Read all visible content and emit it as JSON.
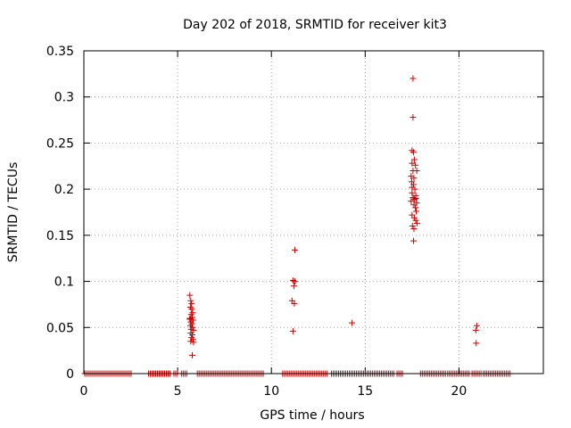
{
  "chart_data": {
    "type": "scatter",
    "title": "Day 202 of 2018, SRMTID for receiver kit3",
    "xlabel": "GPS time / hours",
    "ylabel": "SRMTID / TECUs",
    "xlim": [
      0,
      24.5
    ],
    "ylim": [
      0,
      0.35
    ],
    "xticks": [
      0,
      5,
      10,
      15,
      20
    ],
    "xtick_labels": [
      "0",
      "5",
      "10",
      "15",
      "20"
    ],
    "yticks": [
      0,
      0.05,
      0.1,
      0.15,
      0.2,
      0.25,
      0.3,
      0.35
    ],
    "ytick_labels": [
      "0",
      "0.05",
      "0.1",
      "0.15",
      "0.2",
      "0.25",
      "0.3",
      "0.35"
    ],
    "grid": true,
    "marker_color": "#cc0000",
    "series": [
      {
        "name": "SRMTID",
        "points": [
          [
            5.65,
            0.085
          ],
          [
            5.7,
            0.079
          ],
          [
            5.68,
            0.072
          ],
          [
            5.75,
            0.07
          ],
          [
            5.72,
            0.064
          ],
          [
            5.78,
            0.061
          ],
          [
            5.65,
            0.059
          ],
          [
            5.82,
            0.058
          ],
          [
            5.7,
            0.056
          ],
          [
            5.76,
            0.054
          ],
          [
            5.68,
            0.052
          ],
          [
            5.8,
            0.05
          ],
          [
            5.72,
            0.048
          ],
          [
            5.85,
            0.047
          ],
          [
            5.7,
            0.044
          ],
          [
            5.78,
            0.042
          ],
          [
            5.74,
            0.039
          ],
          [
            5.82,
            0.037
          ],
          [
            5.7,
            0.035
          ],
          [
            5.85,
            0.034
          ],
          [
            5.78,
            0.02
          ],
          [
            5.66,
            0.06
          ],
          [
            5.8,
            0.066
          ],
          [
            5.74,
            0.076
          ],
          [
            11.15,
            0.101
          ],
          [
            11.25,
            0.1
          ],
          [
            11.2,
            0.095
          ],
          [
            11.1,
            0.079
          ],
          [
            11.22,
            0.076
          ],
          [
            11.15,
            0.046
          ],
          [
            11.25,
            0.134
          ],
          [
            14.3,
            0.055
          ],
          [
            17.55,
            0.32
          ],
          [
            17.55,
            0.278
          ],
          [
            17.5,
            0.242
          ],
          [
            17.58,
            0.24
          ],
          [
            17.62,
            0.232
          ],
          [
            17.5,
            0.228
          ],
          [
            17.68,
            0.226
          ],
          [
            17.55,
            0.22
          ],
          [
            17.75,
            0.22
          ],
          [
            17.45,
            0.214
          ],
          [
            17.6,
            0.212
          ],
          [
            17.48,
            0.208
          ],
          [
            17.58,
            0.205
          ],
          [
            17.65,
            0.2
          ],
          [
            17.5,
            0.196
          ],
          [
            17.7,
            0.193
          ],
          [
            17.55,
            0.191
          ],
          [
            17.62,
            0.189
          ],
          [
            17.45,
            0.187
          ],
          [
            17.75,
            0.185
          ],
          [
            17.6,
            0.183
          ],
          [
            17.68,
            0.18
          ],
          [
            17.72,
            0.176
          ],
          [
            17.5,
            0.172
          ],
          [
            17.62,
            0.169
          ],
          [
            17.7,
            0.166
          ],
          [
            17.76,
            0.163
          ],
          [
            17.52,
            0.16
          ],
          [
            17.6,
            0.157
          ],
          [
            17.58,
            0.144
          ],
          [
            17.7,
            0.19
          ],
          [
            17.5,
            0.202
          ],
          [
            20.95,
            0.052
          ],
          [
            20.9,
            0.047
          ],
          [
            20.92,
            0.033
          ]
        ],
        "zero_segments": [
          [
            0.05,
            2.55
          ],
          [
            3.45,
            4.6
          ],
          [
            4.8,
            5.05
          ],
          [
            5.2,
            5.55
          ],
          [
            6.05,
            9.6
          ],
          [
            10.6,
            13.0
          ],
          [
            13.2,
            16.6
          ],
          [
            16.7,
            17.05
          ],
          [
            17.95,
            19.3
          ],
          [
            19.4,
            20.6
          ],
          [
            20.7,
            21.2
          ],
          [
            21.3,
            22.8
          ]
        ],
        "zero_spacing": 0.095
      }
    ]
  }
}
